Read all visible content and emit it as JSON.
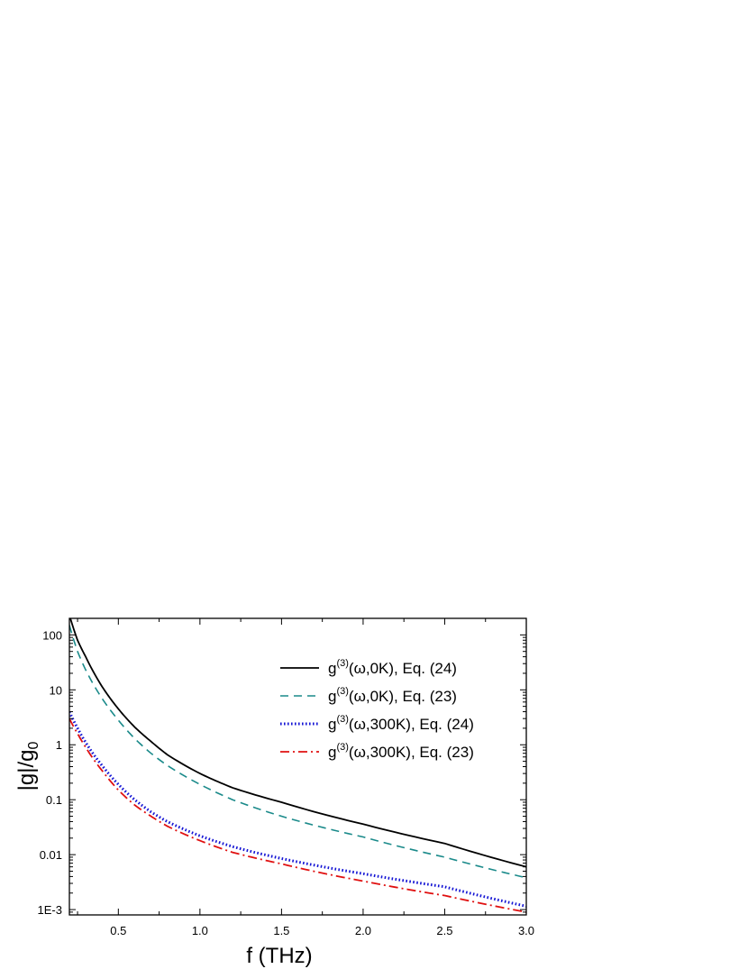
{
  "chart_data": {
    "type": "line",
    "xlabel": "f (THz)",
    "ylabel_main": "|g|/g",
    "ylabel_sub": "0",
    "xlim": [
      0.2,
      3.0
    ],
    "ylim": [
      0.0008,
      200
    ],
    "yscale": "log",
    "x_ticks": [
      0.5,
      1.0,
      1.5,
      2.0,
      2.5,
      3.0
    ],
    "x_tick_labels": [
      "0.5",
      "1.0",
      "1.5",
      "2.0",
      "2.5",
      "3.0"
    ],
    "y_ticks": [
      0.001,
      0.01,
      0.1,
      1,
      10,
      100
    ],
    "y_tick_labels": [
      "1E-3",
      "0.01",
      "0.1",
      "1",
      "10",
      "100"
    ],
    "grid": false,
    "legend_position": "top-right",
    "series": [
      {
        "name_pre": "g",
        "name_sup": "(3)",
        "name_post": "(ω,0K), Eq. (24)",
        "color": "#000000",
        "style": "solid",
        "x": [
          0.2,
          0.25,
          0.3,
          0.4,
          0.5,
          0.6,
          0.7,
          0.8,
          1.0,
          1.2,
          1.5,
          2.0,
          2.5,
          3.0
        ],
        "y": [
          230,
          80,
          40,
          11.5,
          4.5,
          2.1,
          1.15,
          0.66,
          0.3,
          0.165,
          0.09,
          0.036,
          0.016,
          0.006
        ]
      },
      {
        "name_pre": "g",
        "name_sup": "(3)",
        "name_post": "(ω,0K), Eq. (23)",
        "color": "#1a8a8a",
        "style": "dashed",
        "x": [
          0.2,
          0.25,
          0.3,
          0.4,
          0.5,
          0.6,
          0.7,
          0.8,
          1.0,
          1.2,
          1.5,
          2.0,
          2.5,
          3.0
        ],
        "y": [
          150,
          50,
          23,
          7.0,
          2.8,
          1.3,
          0.7,
          0.42,
          0.19,
          0.1,
          0.05,
          0.021,
          0.009,
          0.0038
        ]
      },
      {
        "name_pre": "g",
        "name_sup": "(3)",
        "name_post": "(ω,300K), Eq. (24)",
        "color": "#1414d4",
        "style": "dotted",
        "x": [
          0.2,
          0.25,
          0.3,
          0.4,
          0.5,
          0.6,
          0.7,
          0.8,
          1.0,
          1.2,
          1.5,
          2.0,
          2.5,
          3.0
        ],
        "y": [
          4.0,
          2.0,
          1.1,
          0.42,
          0.19,
          0.1,
          0.06,
          0.04,
          0.022,
          0.014,
          0.0085,
          0.0045,
          0.0026,
          0.00115
        ]
      },
      {
        "name_pre": "g",
        "name_sup": "(3)",
        "name_post": "(ω,300K), Eq. (23)",
        "color": "#e01010",
        "style": "dashdot",
        "x": [
          0.2,
          0.25,
          0.3,
          0.4,
          0.5,
          0.6,
          0.7,
          0.8,
          1.0,
          1.2,
          1.5,
          2.0,
          2.5,
          3.0
        ],
        "y": [
          3.0,
          1.6,
          0.9,
          0.34,
          0.15,
          0.08,
          0.05,
          0.033,
          0.018,
          0.011,
          0.0068,
          0.0033,
          0.0018,
          0.0009
        ]
      }
    ]
  }
}
